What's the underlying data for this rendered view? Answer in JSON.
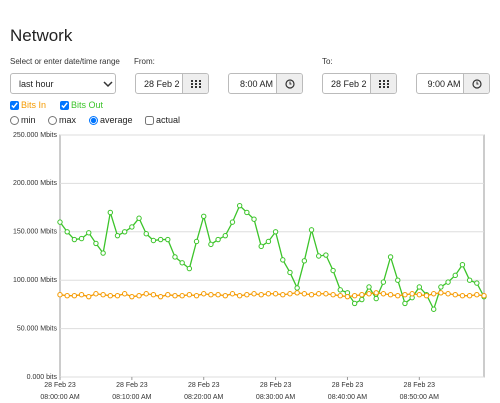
{
  "header": {
    "title": "Network"
  },
  "range": {
    "label": "Select or enter date/time range",
    "preset": "last hour"
  },
  "from": {
    "label": "From:",
    "date": "28 Feb 2",
    "time": "8:00 AM"
  },
  "to": {
    "label": "To:",
    "date": "28 Feb 2",
    "time": "9:00 AM"
  },
  "aggregation": [
    "min",
    "max",
    "average"
  ],
  "actual": "actual",
  "chart_data": {
    "type": "line",
    "x": [
      0,
      1,
      2,
      3,
      4,
      5,
      6,
      7,
      8,
      9,
      10,
      11,
      12,
      13,
      14,
      15,
      16,
      17,
      18,
      19,
      20,
      21,
      22,
      23,
      24,
      25,
      26,
      27,
      28,
      29,
      30,
      31,
      32,
      33,
      34,
      35,
      36,
      37,
      38,
      39,
      40,
      41,
      42,
      43,
      44,
      45,
      46,
      47,
      48,
      49,
      50,
      51,
      52,
      53,
      54,
      55,
      56,
      57,
      58,
      59
    ],
    "series": [
      {
        "name": "Bits In",
        "color": "#f59a00",
        "values": [
          85,
          84,
          84,
          85,
          83,
          86,
          85,
          84,
          84,
          86,
          83,
          84,
          86,
          85,
          83,
          85,
          84,
          84,
          85,
          84,
          86,
          85,
          85,
          84,
          86,
          84,
          85,
          86,
          85,
          86,
          86,
          85,
          86,
          87,
          86,
          85,
          86,
          86,
          85,
          84,
          83,
          84,
          85,
          86,
          87,
          86,
          85,
          84,
          85,
          86,
          85,
          84,
          86,
          87,
          86,
          85,
          84,
          84,
          85,
          84
        ]
      },
      {
        "name": "Bits Out",
        "color": "#3cc42a",
        "values": [
          160,
          150,
          142,
          143,
          149,
          138,
          128,
          170,
          146,
          150,
          155,
          164,
          148,
          141,
          142,
          142,
          124,
          118,
          112,
          140,
          166,
          137,
          142,
          146,
          160,
          177,
          170,
          163,
          135,
          140,
          150,
          121,
          108,
          92,
          120,
          152,
          125,
          126,
          110,
          90,
          87,
          76,
          80,
          93,
          81,
          98,
          124,
          100,
          76,
          82,
          93,
          85,
          70,
          93,
          98,
          105,
          116,
          100,
          97,
          83
        ]
      }
    ],
    "xlim": [
      0,
      59
    ],
    "xticks": [
      {
        "value": 0,
        "label": "28 Feb 23\n08:00:00 AM"
      },
      {
        "value": 10,
        "label": "28 Feb 23\n08:10:00 AM"
      },
      {
        "value": 20,
        "label": "28 Feb 23\n08:20:00 AM"
      },
      {
        "value": 30,
        "label": "28 Feb 23\n08:30:00 AM"
      },
      {
        "value": 40,
        "label": "28 Feb 23\n08:40:00 AM"
      },
      {
        "value": 50,
        "label": "28 Feb 23\n08:50:00 AM"
      }
    ],
    "ylim": [
      0,
      250
    ],
    "yticks": [
      {
        "value": 0,
        "label": "0.000 bits"
      },
      {
        "value": 50,
        "label": "50.000 Mbits"
      },
      {
        "value": 100,
        "label": "100.000 Mbits"
      },
      {
        "value": 150,
        "label": "150.000 Mbits"
      },
      {
        "value": 200,
        "label": "200.000 Mbits"
      },
      {
        "value": 250,
        "label": "250.000 Mbits"
      }
    ],
    "grid": true
  }
}
